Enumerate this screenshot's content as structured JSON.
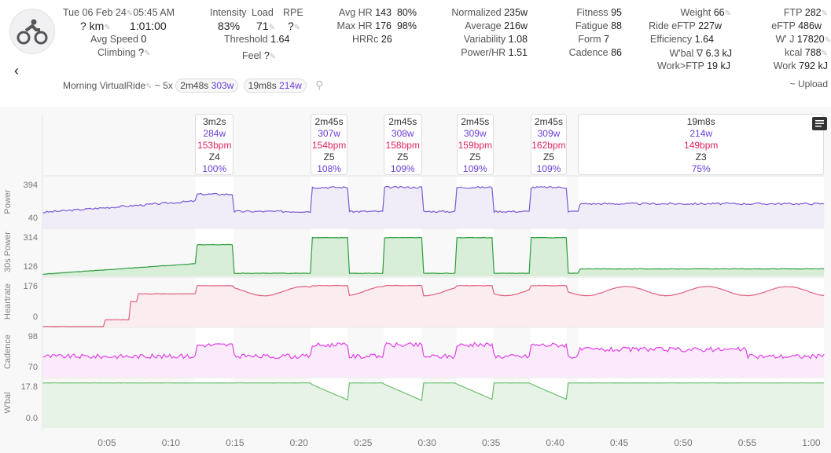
{
  "header": {
    "date": "Tue 06 Feb 24",
    "time": "05:45 AM",
    "distance": "? km",
    "duration": "1:01:00",
    "avg_speed_label": "Avg Speed",
    "avg_speed": "0",
    "climbing_label": "Climbing",
    "climbing": "?",
    "intensity_label": "Intensity",
    "intensity": "83%",
    "load_label": "Load",
    "load": "71",
    "rpe_label": "RPE",
    "rpe": "?",
    "threshold_label": "Threshold",
    "threshold": "1.64",
    "feel_label": "Feel",
    "feel": "?",
    "avg_hr_label": "Avg HR",
    "avg_hr": "143",
    "avg_hr_pct": "80%",
    "max_hr_label": "Max HR",
    "max_hr": "176",
    "max_hr_pct": "98%",
    "hrrc_label": "HRRc",
    "hrrc": "26",
    "normalized_label": "Normalized",
    "normalized": "235w",
    "average_label": "Average",
    "average": "216w",
    "variability_label": "Variability",
    "variability": "1.08",
    "power_hr_label": "Power/HR",
    "power_hr": "1.51",
    "fitness_label": "Fitness",
    "fitness": "95",
    "fatigue_label": "Fatigue",
    "fatigue": "88",
    "form_label": "Form",
    "form": "7",
    "cadence_label": "Cadence",
    "cadence": "86",
    "weight_label": "Weight",
    "weight": "66",
    "ride_eftp_label": "Ride eFTP",
    "ride_eftp": "227w",
    "efficiency_label": "Efficiency",
    "efficiency": "1.64",
    "wbal_label": "W'bal ∇",
    "wbal": "6.3 kJ",
    "work_ftp_label": "Work>FTP",
    "work_ftp": "19 kJ",
    "ftp_label": "FTP",
    "ftp": "282",
    "eftp_label": "eFTP",
    "eftp": "486w",
    "wj_label": "W' J",
    "wj": "17820",
    "kcal_label": "kcal",
    "kcal": "788",
    "work_label": "Work",
    "work": "792 kJ",
    "upload": "~ Upload",
    "name": "Morning VirtualRide",
    "summary_prefix": "~ 5x",
    "chip1_time": "2m48s",
    "chip1_power": "303w",
    "chip2_time": "19m8s",
    "chip2_power": "214w"
  },
  "intervals": [
    {
      "duration": "3m2s",
      "power": "284w",
      "hr": "153bpm",
      "zone": "Z4",
      "pct": "100%",
      "start": 11.9,
      "end": 14.9
    },
    {
      "duration": "2m45s",
      "power": "307w",
      "hr": "154bpm",
      "zone": "Z5",
      "pct": "108%",
      "start": 20.9,
      "end": 23.8
    },
    {
      "duration": "2m45s",
      "power": "308w",
      "hr": "158bpm",
      "zone": "Z5",
      "pct": "109%",
      "start": 26.6,
      "end": 29.6
    },
    {
      "duration": "2m45s",
      "power": "309w",
      "hr": "159bpm",
      "zone": "Z5",
      "pct": "109%",
      "start": 32.3,
      "end": 35.2
    },
    {
      "duration": "2m45s",
      "power": "309w",
      "hr": "162bpm",
      "zone": "Z5",
      "pct": "109%",
      "start": 38.1,
      "end": 40.9
    },
    {
      "duration": "19m8s",
      "power": "214w",
      "hr": "149bpm",
      "zone": "Z3",
      "pct": "75%",
      "start": 41.8,
      "end": 61
    }
  ],
  "charts": [
    {
      "label": "Power",
      "max": "394",
      "min": "40",
      "color": "#7b5bd6"
    },
    {
      "label": "30s Power",
      "max": "314",
      "min": "126",
      "color": "#2e9e3e"
    },
    {
      "label": "Heartrate",
      "max": "176",
      "min": "0",
      "color": "#e06080"
    },
    {
      "label": "Cadence",
      "max": "98",
      "min": "70",
      "color": "#e040e8"
    },
    {
      "label": "W'bal",
      "max": "17.8",
      "min": "0.0",
      "color": "#6cbf6c"
    }
  ],
  "x_ticks": [
    "0:05",
    "0:10",
    "0:15",
    "0:20",
    "0:25",
    "0:30",
    "0:35",
    "0:40",
    "0:45",
    "0:50",
    "0:55",
    "1:00"
  ]
}
